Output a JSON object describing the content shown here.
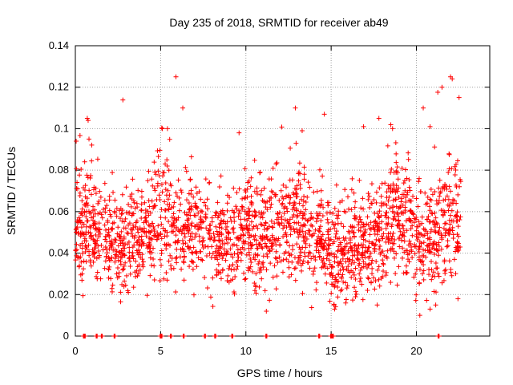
{
  "chart_data": {
    "type": "scatter",
    "title": "Day 235 of 2018, SRMTID for receiver ab49",
    "xlabel": "GPS time / hours",
    "ylabel": "SRMTID / TECUs",
    "xlim": [
      0,
      24.3
    ],
    "ylim": [
      0,
      0.14
    ],
    "x_ticks": [
      0,
      5,
      10,
      15,
      20
    ],
    "x_tick_labels": [
      "0",
      "5",
      "10",
      "15",
      "20"
    ],
    "y_ticks": [
      0,
      0.02,
      0.04,
      0.06,
      0.08,
      0.1,
      0.12,
      0.14
    ],
    "y_tick_labels": [
      "0",
      "0.02",
      "0.04",
      "0.06",
      "0.08",
      "0.1",
      "0.12",
      "0.14"
    ],
    "grid": true,
    "marker": "+",
    "color": "#ff0000",
    "data_range_hours": [
      0,
      22.6
    ],
    "zero_value_times": [
      0.5,
      0.55,
      1.25,
      1.55,
      2.3,
      5.0,
      5.05,
      5.6,
      6.35,
      7.6,
      8.2,
      9.2,
      11.2,
      14.3,
      15.0,
      15.1,
      21.3
    ],
    "envelope": [
      {
        "t": 0,
        "mean": 0.055,
        "spread": 0.013
      },
      {
        "t": 1,
        "mean": 0.052,
        "spread": 0.012
      },
      {
        "t": 2,
        "mean": 0.046,
        "spread": 0.012
      },
      {
        "t": 3,
        "mean": 0.044,
        "spread": 0.012
      },
      {
        "t": 4,
        "mean": 0.05,
        "spread": 0.011
      },
      {
        "t": 5,
        "mean": 0.06,
        "spread": 0.016
      },
      {
        "t": 6,
        "mean": 0.053,
        "spread": 0.013
      },
      {
        "t": 7,
        "mean": 0.052,
        "spread": 0.013
      },
      {
        "t": 8,
        "mean": 0.049,
        "spread": 0.012
      },
      {
        "t": 9,
        "mean": 0.047,
        "spread": 0.012
      },
      {
        "t": 10,
        "mean": 0.05,
        "spread": 0.013
      },
      {
        "t": 11,
        "mean": 0.048,
        "spread": 0.012
      },
      {
        "t": 12,
        "mean": 0.053,
        "spread": 0.013
      },
      {
        "t": 13,
        "mean": 0.058,
        "spread": 0.014
      },
      {
        "t": 14,
        "mean": 0.05,
        "spread": 0.012
      },
      {
        "t": 15,
        "mean": 0.038,
        "spread": 0.012
      },
      {
        "t": 16,
        "mean": 0.043,
        "spread": 0.012
      },
      {
        "t": 17,
        "mean": 0.044,
        "spread": 0.012
      },
      {
        "t": 18,
        "mean": 0.052,
        "spread": 0.014
      },
      {
        "t": 19,
        "mean": 0.057,
        "spread": 0.015
      },
      {
        "t": 20,
        "mean": 0.049,
        "spread": 0.013
      },
      {
        "t": 21,
        "mean": 0.047,
        "spread": 0.014
      },
      {
        "t": 22,
        "mean": 0.058,
        "spread": 0.016
      },
      {
        "t": 22.6,
        "mean": 0.055,
        "spread": 0.014
      }
    ],
    "outliers": [
      {
        "x": 0.05,
        "y": 0.094
      },
      {
        "x": 0.7,
        "y": 0.105
      },
      {
        "x": 0.75,
        "y": 0.104
      },
      {
        "x": 0.8,
        "y": 0.095
      },
      {
        "x": 5.1,
        "y": 0.1
      },
      {
        "x": 5.4,
        "y": 0.1
      },
      {
        "x": 5.9,
        "y": 0.125
      },
      {
        "x": 6.3,
        "y": 0.11
      },
      {
        "x": 9.6,
        "y": 0.098
      },
      {
        "x": 12.9,
        "y": 0.11
      },
      {
        "x": 13.3,
        "y": 0.099
      },
      {
        "x": 14.6,
        "y": 0.107
      },
      {
        "x": 16.9,
        "y": 0.101
      },
      {
        "x": 17.8,
        "y": 0.105
      },
      {
        "x": 18.6,
        "y": 0.1
      },
      {
        "x": 20.4,
        "y": 0.11
      },
      {
        "x": 20.8,
        "y": 0.101
      },
      {
        "x": 20.8,
        "y": 0.013
      },
      {
        "x": 21.5,
        "y": 0.12
      },
      {
        "x": 22.0,
        "y": 0.125
      },
      {
        "x": 22.1,
        "y": 0.124
      },
      {
        "x": 22.5,
        "y": 0.115
      },
      {
        "x": 0.4,
        "y": 0.03
      },
      {
        "x": 11.2,
        "y": 0.012
      },
      {
        "x": 15.2,
        "y": 0.013
      },
      {
        "x": 17.7,
        "y": 0.015
      },
      {
        "x": 20.2,
        "y": 0.01
      }
    ]
  }
}
